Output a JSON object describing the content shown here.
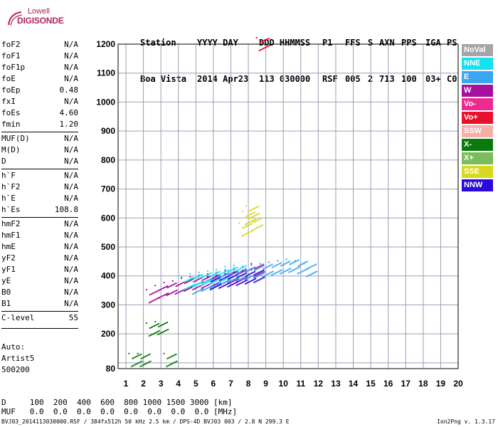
{
  "logo": {
    "line1": "Lowell",
    "line2": "DIGISONDE"
  },
  "header": {
    "station_label": "Station",
    "station_value": "Boa Vista",
    "date_label": "YYYY DAY",
    "date_value": "2014 Apr23",
    "time_label": "DDD HHMMSS",
    "time_value": "113 030000",
    "p1_label": "P1",
    "p1_value": "RSF",
    "ffs_label": "FFS",
    "ffs_value": "005",
    "s_label": "S",
    "s_value": "2",
    "axn_label": "AXN",
    "axn_value": "713",
    "pps_label": "PPS",
    "pps_value": "100",
    "iga_label": "IGA",
    "iga_value": "03+",
    "ps_label": "PS",
    "ps_value": "C0"
  },
  "params": {
    "group1": [
      {
        "name": "foF2",
        "value": "N/A"
      },
      {
        "name": "foF1",
        "value": "N/A"
      },
      {
        "name": "foF1p",
        "value": "N/A"
      },
      {
        "name": "foE",
        "value": "N/A"
      },
      {
        "name": "foEp",
        "value": "0.48"
      },
      {
        "name": "fxI",
        "value": "N/A"
      },
      {
        "name": "foEs",
        "value": "4.60"
      },
      {
        "name": "fmin",
        "value": "1.20"
      }
    ],
    "group2": [
      {
        "name": "MUF(D)",
        "value": "N/A"
      },
      {
        "name": "M(D)",
        "value": "N/A"
      },
      {
        "name": "D",
        "value": "N/A"
      }
    ],
    "group3": [
      {
        "name": "h`F",
        "value": "N/A"
      },
      {
        "name": "h`F2",
        "value": "N/A"
      },
      {
        "name": "h`E",
        "value": "N/A"
      },
      {
        "name": "h`Es",
        "value": "108.8"
      }
    ],
    "group4": [
      {
        "name": "hmF2",
        "value": "N/A"
      },
      {
        "name": "hmF1",
        "value": "N/A"
      },
      {
        "name": "hmE",
        "value": "N/A"
      },
      {
        "name": "yF2",
        "value": "N/A"
      },
      {
        "name": "yF1",
        "value": "N/A"
      },
      {
        "name": "yE",
        "value": "N/A"
      },
      {
        "name": "B0",
        "value": "N/A"
      },
      {
        "name": "B1",
        "value": "N/A"
      }
    ],
    "clevel": {
      "name": "C-level",
      "value": "55"
    }
  },
  "autoscale": {
    "line1": "Auto:",
    "line2": "Artist5",
    "line3": "500200"
  },
  "footer": {
    "d_row": "D     100  200  400  600  800 1000 1500 3000 [km]",
    "muf_row": "MUF   0.0  0.0  0.0  0.0  0.0  0.0  0.0  0.0 [MHz]",
    "filename": "BVJ03_2014113030000.RSF / 384fx512h 50 kHz 2.5 km / DPS-4D BVJ03 003 / 2.8 N 299.3 E",
    "version": "Ion2Png v. 1.3.17"
  },
  "legend": [
    {
      "label": "NoVal",
      "color": "#a6a6a6"
    },
    {
      "label": "NNE",
      "color": "#17e0f0"
    },
    {
      "label": "E",
      "color": "#3aa6f2"
    },
    {
      "label": "W",
      "color": "#a6109e"
    },
    {
      "label": "Vo-",
      "color": "#ee2a8e"
    },
    {
      "label": "Vo+",
      "color": "#e8102a"
    },
    {
      "label": "SSW",
      "color": "#f4b0a8"
    },
    {
      "label": "X-",
      "color": "#0a7a0a"
    },
    {
      "label": "X+",
      "color": "#7cbc5c"
    },
    {
      "label": "SSE",
      "color": "#d8d822"
    },
    {
      "label": "NNW",
      "color": "#2a0ad8"
    }
  ],
  "chart_data": {
    "type": "scatter",
    "x_ticks": [
      1,
      2,
      3,
      4,
      5,
      6,
      7,
      8,
      9,
      10,
      11,
      12,
      13,
      14,
      15,
      16,
      17,
      18,
      19,
      20
    ],
    "y_ticks": [
      80,
      100,
      200,
      300,
      400,
      500,
      600,
      700,
      800,
      900,
      1000,
      1100,
      1200
    ],
    "y_tick_labels": [
      "80",
      "",
      "200",
      "300",
      "400",
      "500",
      "600",
      "700",
      "800",
      "900",
      "1000",
      "1100",
      "1200"
    ],
    "xlim": [
      1,
      20
    ],
    "ylim": [
      80,
      1200
    ],
    "grid": true,
    "legend_position": "right",
    "xlabel": "",
    "ylabel": "",
    "series": [
      {
        "name": "W",
        "color": "#a6109e",
        "x": [
          2.5,
          3.0,
          3.5,
          4.0,
          4.5,
          5.0,
          5.5,
          6.0,
          6.5,
          7.0,
          7.5,
          8.0,
          8.5
        ],
        "y": [
          330,
          345,
          355,
          360,
          370,
          375,
          380,
          385,
          390,
          395,
          400,
          410,
          420
        ]
      },
      {
        "name": "E",
        "color": "#3aa6f2",
        "x": [
          5.0,
          5.5,
          6.0,
          6.5,
          7.0,
          7.5,
          8.0,
          8.5,
          9.0,
          9.5,
          10.0,
          10.5,
          11.0,
          11.5
        ],
        "y": [
          360,
          370,
          380,
          390,
          400,
          405,
          410,
          415,
          420,
          425,
          430,
          435,
          430,
          420
        ]
      },
      {
        "name": "NNE",
        "color": "#17e0f0",
        "x": [
          4.5,
          5.0,
          5.5,
          6.0,
          6.5,
          7.0,
          7.5
        ],
        "y": [
          375,
          385,
          390,
          395,
          400,
          410,
          415
        ]
      },
      {
        "name": "NNW",
        "color": "#2a0ad8",
        "x": [
          6.0,
          6.5,
          7.0,
          7.5,
          8.0,
          8.5
        ],
        "y": [
          375,
          380,
          385,
          390,
          395,
          400
        ]
      },
      {
        "name": "SSE",
        "color": "#d8d822",
        "x": [
          7.8,
          8.0,
          8.2,
          8.4
        ],
        "y": [
          560,
          600,
          620,
          580
        ]
      },
      {
        "name": "X-",
        "color": "#0a7a0a",
        "x": [
          1.5,
          2.0,
          2.5,
          3.0,
          3.5
        ],
        "y": [
          110,
          110,
          215,
          220,
          110
        ]
      },
      {
        "name": "Vo+",
        "color": "#e8102a",
        "x": [
          8.8
        ],
        "y": [
          1200
        ]
      }
    ]
  }
}
